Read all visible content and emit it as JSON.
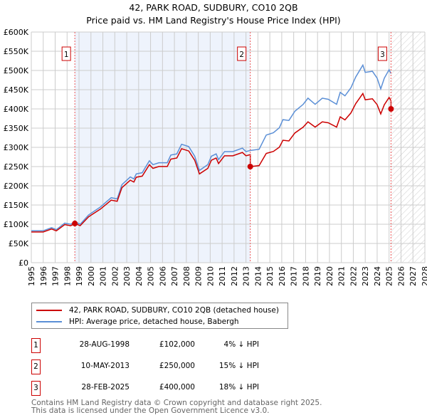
{
  "chart_data": {
    "type": "line",
    "title": "42, PARK ROAD, SUDBURY, CO10 2QB",
    "subtitle": "Price paid vs. HM Land Registry's House Price Index (HPI)",
    "xlim": [
      1995,
      2028
    ],
    "ylim": [
      0,
      600000
    ],
    "yticks": [
      {
        "v": 0,
        "l": "£0"
      },
      {
        "v": 50000,
        "l": "£50K"
      },
      {
        "v": 100000,
        "l": "£100K"
      },
      {
        "v": 150000,
        "l": "£150K"
      },
      {
        "v": 200000,
        "l": "£200K"
      },
      {
        "v": 250000,
        "l": "£250K"
      },
      {
        "v": 300000,
        "l": "£300K"
      },
      {
        "v": 350000,
        "l": "£350K"
      },
      {
        "v": 400000,
        "l": "£400K"
      },
      {
        "v": 450000,
        "l": "£450K"
      },
      {
        "v": 500000,
        "l": "£500K"
      },
      {
        "v": 550000,
        "l": "£550K"
      },
      {
        "v": 600000,
        "l": "£600K"
      }
    ],
    "xticks": [
      "1995",
      "1996",
      "1997",
      "1998",
      "1999",
      "2000",
      "2001",
      "2002",
      "2003",
      "2004",
      "2005",
      "2006",
      "2007",
      "2008",
      "2009",
      "2010",
      "2011",
      "2012",
      "2013",
      "2014",
      "2015",
      "2016",
      "2017",
      "2018",
      "2019",
      "2020",
      "2021",
      "2022",
      "2023",
      "2024",
      "2025",
      "2026",
      "2027",
      "2028"
    ],
    "grid": true,
    "colors": {
      "property": "#cc0000",
      "hpi": "#5b8fd6",
      "shade": "#eef3fc"
    },
    "hpi": [
      [
        1995,
        83
      ],
      [
        1996,
        83
      ],
      [
        1996.7,
        91
      ],
      [
        1997.1,
        86
      ],
      [
        1997.8,
        103
      ],
      [
        1998.3,
        100
      ],
      [
        1998.65,
        106
      ],
      [
        1999.1,
        100
      ],
      [
        1999.8,
        124
      ],
      [
        2000.8,
        145
      ],
      [
        2001.7,
        169
      ],
      [
        2002.2,
        166
      ],
      [
        2002.6,
        203
      ],
      [
        2003.3,
        223
      ],
      [
        2003.6,
        218
      ],
      [
        2003.8,
        231
      ],
      [
        2004.3,
        234
      ],
      [
        2004.9,
        265
      ],
      [
        2005.2,
        255
      ],
      [
        2005.7,
        260
      ],
      [
        2006.4,
        260
      ],
      [
        2006.7,
        280
      ],
      [
        2007.2,
        283
      ],
      [
        2007.6,
        308
      ],
      [
        2008.2,
        302
      ],
      [
        2008.7,
        277
      ],
      [
        2009.1,
        240
      ],
      [
        2009.8,
        255
      ],
      [
        2010.1,
        277
      ],
      [
        2010.5,
        283
      ],
      [
        2010.7,
        268
      ],
      [
        2011.2,
        289
      ],
      [
        2011.9,
        289
      ],
      [
        2012.7,
        298
      ],
      [
        2013.0,
        289
      ],
      [
        2013.36,
        292
      ],
      [
        2014.1,
        295
      ],
      [
        2014.7,
        332
      ],
      [
        2015.3,
        338
      ],
      [
        2015.8,
        351
      ],
      [
        2016.1,
        372
      ],
      [
        2016.6,
        370
      ],
      [
        2017.1,
        394
      ],
      [
        2017.8,
        412
      ],
      [
        2018.2,
        428
      ],
      [
        2018.8,
        412
      ],
      [
        2019.4,
        428
      ],
      [
        2019.9,
        425
      ],
      [
        2020.6,
        412
      ],
      [
        2020.9,
        443
      ],
      [
        2021.3,
        434
      ],
      [
        2021.8,
        455
      ],
      [
        2022.2,
        483
      ],
      [
        2022.8,
        514
      ],
      [
        2023.0,
        495
      ],
      [
        2023.6,
        498
      ],
      [
        2024.0,
        480
      ],
      [
        2024.3,
        452
      ],
      [
        2024.6,
        480
      ],
      [
        2025.0,
        502
      ],
      [
        2025.16,
        492
      ]
    ],
    "hpi_units": "thousands GBP",
    "sales": [
      {
        "label": "1",
        "x": 1998.65,
        "date": "28-AUG-1998",
        "price": "£102,000",
        "value": 102000,
        "hpi": "4% ↓ HPI"
      },
      {
        "label": "2",
        "x": 2013.36,
        "date": "10-MAY-2013",
        "price": "£250,000",
        "value": 250000,
        "hpi": "15% ↓ HPI"
      },
      {
        "label": "3",
        "x": 2025.16,
        "date": "28-FEB-2025",
        "price": "£400,000",
        "value": 400000,
        "hpi": "18% ↓ HPI"
      }
    ],
    "legend": [
      "42, PARK ROAD, SUDBURY, CO10 2QB (detached house)",
      "HPI: Average price, detached house, Babergh"
    ]
  },
  "footer": [
    "Contains HM Land Registry data © Crown copyright and database right 2025.",
    "This data is licensed under the Open Government Licence v3.0."
  ]
}
